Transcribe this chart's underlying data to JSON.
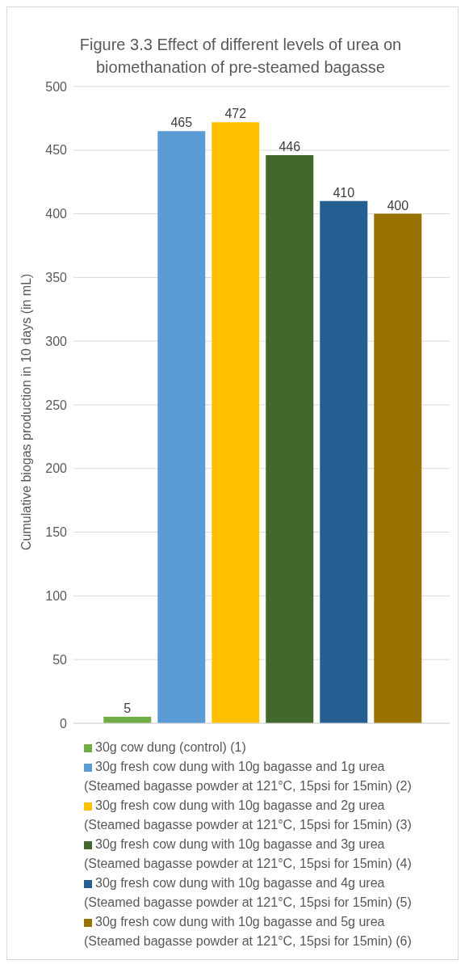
{
  "chart_data": {
    "type": "bar",
    "title": "Figure 3.3 Effect of different levels of urea on biomethanation of pre-steamed bagasse",
    "ylabel": "Cumulative biogas production in 10 days (in mL)",
    "categories": [
      null
    ],
    "series": [
      {
        "name": "30g cow dung (control) (1)",
        "color": "#70ad47",
        "values": [
          5
        ]
      },
      {
        "name": "30g fresh cow dung with 10g bagasse and 1g urea (Steamed bagasse powder at 121°C, 15psi for 15min) (2)",
        "color": "#5b9bd5",
        "values": [
          465
        ]
      },
      {
        "name": "30g fresh cow dung with 10g bagasse and 2g urea (Steamed bagasse powder at 121°C, 15psi for 15min) (3)",
        "color": "#ffc000",
        "values": [
          472
        ]
      },
      {
        "name": "30g fresh cow dung with 10g bagasse and 3g urea (Steamed bagasse powder at 121°C, 15psi for 15min) (4)",
        "color": "#43682b",
        "values": [
          446
        ]
      },
      {
        "name": "30g fresh cow dung with 10g bagasse and 4g urea (Steamed bagasse powder at 121°C, 15psi for 15min) (5)",
        "color": "#255e91",
        "values": [
          410
        ]
      },
      {
        "name": "30g fresh cow dung with 10g bagasse and 5g urea (Steamed bagasse powder at 121°C, 15psi for 15min) (6)",
        "color": "#997300",
        "values": [
          400
        ]
      }
    ],
    "ylim": [
      0,
      500
    ],
    "yticks": [
      0,
      50,
      100,
      150,
      200,
      250,
      300,
      350,
      400,
      450,
      500
    ],
    "grid": "y",
    "legend": "bottom",
    "data_labels": true
  }
}
